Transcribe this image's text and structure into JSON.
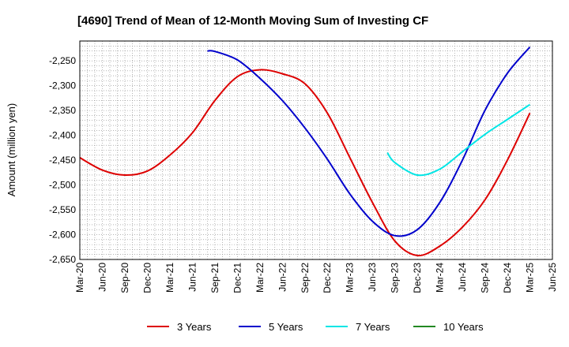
{
  "chart_data": {
    "type": "line",
    "title": "[4690]  Trend of Mean of 12-Month Moving Sum of Investing CF",
    "xlabel": "",
    "ylabel": "Amount (million yen)",
    "ylim": [
      -2650,
      -2210
    ],
    "yticks": [
      -2650,
      -2600,
      -2550,
      -2500,
      -2450,
      -2400,
      -2350,
      -2300,
      -2250
    ],
    "ytick_labels": [
      "-2,650",
      "-2,600",
      "-2,550",
      "-2,500",
      "-2,450",
      "-2,400",
      "-2,350",
      "-2,300",
      "-2,250"
    ],
    "x_start": "Mar-20",
    "x_end": "Jun-25",
    "xtick_labels": [
      "Mar-20",
      "Jun-20",
      "Sep-20",
      "Dec-20",
      "Mar-21",
      "Jun-21",
      "Sep-21",
      "Dec-21",
      "Mar-22",
      "Jun-22",
      "Sep-22",
      "Dec-22",
      "Mar-23",
      "Jun-23",
      "Sep-23",
      "Dec-23",
      "Mar-24",
      "Jun-24",
      "Sep-24",
      "Dec-24",
      "Mar-25",
      "Jun-25"
    ],
    "grid": true,
    "legend_position": "bottom",
    "series": [
      {
        "name": "3 Years",
        "color": "#dd0000",
        "x": [
          "Mar-20",
          "Jun-20",
          "Sep-20",
          "Dec-20",
          "Mar-21",
          "Jun-21",
          "Sep-21",
          "Dec-21",
          "Mar-22",
          "Jun-22",
          "Sep-22",
          "Dec-22",
          "Mar-23",
          "Jun-23",
          "Sep-23",
          "Dec-23",
          "Mar-24",
          "Jun-24",
          "Sep-24",
          "Dec-24",
          "Mar-25"
        ],
        "values": [
          -2445,
          -2470,
          -2480,
          -2472,
          -2440,
          -2395,
          -2330,
          -2282,
          -2268,
          -2276,
          -2296,
          -2355,
          -2445,
          -2535,
          -2613,
          -2642,
          -2623,
          -2585,
          -2530,
          -2450,
          -2355
        ]
      },
      {
        "name": "5 Years",
        "color": "#0000cc",
        "x": [
          "Aug-21",
          "Sep-21",
          "Dec-21",
          "Mar-22",
          "Jun-22",
          "Sep-22",
          "Dec-22",
          "Mar-23",
          "Jun-23",
          "Sep-23",
          "Dec-23",
          "Mar-24",
          "Jun-24",
          "Sep-24",
          "Dec-24",
          "Mar-25"
        ],
        "values": [
          -2230,
          -2231,
          -2248,
          -2285,
          -2330,
          -2385,
          -2448,
          -2518,
          -2573,
          -2602,
          -2590,
          -2535,
          -2450,
          -2350,
          -2275,
          -2222
        ]
      },
      {
        "name": "7 Years",
        "color": "#00e5e5",
        "x": [
          "Aug-23",
          "Sep-23",
          "Dec-23",
          "Mar-24",
          "Jun-24",
          "Sep-24",
          "Dec-24",
          "Mar-25"
        ],
        "values": [
          -2435,
          -2455,
          -2480,
          -2468,
          -2433,
          -2398,
          -2368,
          -2338
        ]
      },
      {
        "name": "10 Years",
        "color": "#228822",
        "x": [],
        "values": []
      }
    ]
  }
}
